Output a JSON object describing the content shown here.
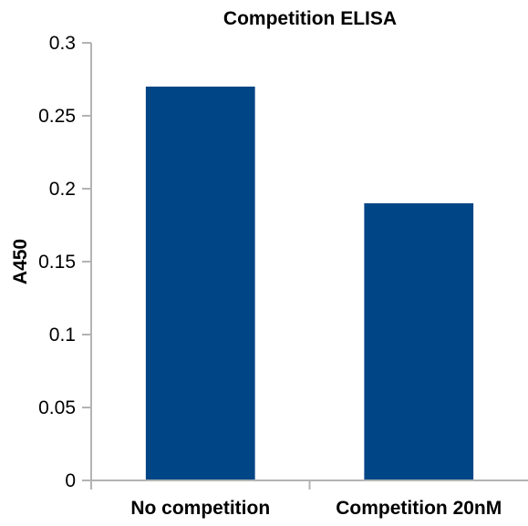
{
  "chart_data": {
    "type": "bar",
    "title": "Competition ELISA",
    "xlabel": "",
    "ylabel": "A450",
    "categories": [
      "No competition",
      "Competition 20nM"
    ],
    "values": [
      0.27,
      0.19
    ],
    "ylim": [
      0,
      0.3
    ],
    "y_ticks": [
      "0",
      "0.05",
      "0.1",
      "0.15",
      "0.2",
      "0.25",
      "0.3"
    ],
    "bar_color": "#004586",
    "axis_color": "#b3b3b3",
    "grid": false,
    "legend": "none"
  }
}
